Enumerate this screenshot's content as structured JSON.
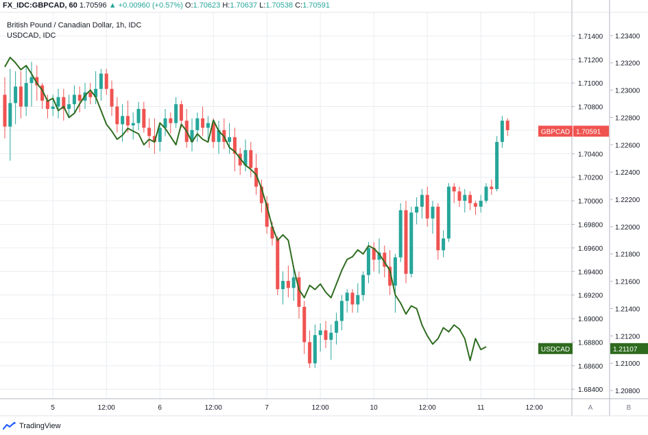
{
  "header": {
    "symbol": "FX_IDC:GBPCAD, 60",
    "last": "1.70596",
    "change": "+0.00960 (+0.57%)",
    "o_label": "O:",
    "o": "1.70623",
    "h_label": "H:",
    "h": "1.70637",
    "l_label": "L:",
    "l": "1.70538",
    "c_label": "C:",
    "c": "1.70591"
  },
  "subtitle_main": "British Pound / Canadian Dollar, 1h, IDC",
  "subtitle_overlay": "USDCAD, IDC",
  "footer": {
    "brand": "TradingView"
  },
  "colors": {
    "up": "#26a69a",
    "down": "#ef5350",
    "overlay": "#2e6b1f",
    "grid": "#e9ecf0",
    "axis_text": "#131722"
  },
  "chart_data": {
    "type": "candlestick",
    "x_tick_labels": [
      "5",
      "12:00",
      "6",
      "12:00",
      "7",
      "12:00",
      "10",
      "12:00",
      "11",
      "12:00"
    ],
    "x_tick_index": [
      9,
      19,
      29,
      39,
      49,
      59,
      69,
      79,
      89,
      99
    ],
    "y_left_ticks": [
      "1.71400",
      "1.71200",
      "1.71000",
      "1.70800",
      "1.70600",
      "1.70400",
      "1.70200",
      "1.70000",
      "1.69800",
      "1.69600",
      "1.69400",
      "1.69200",
      "1.69000",
      "1.68800",
      "1.68600",
      "1.68400"
    ],
    "y_right_ticks": [
      "1.23400",
      "1.23200",
      "1.23000",
      "1.22800",
      "1.22600",
      "1.22400",
      "1.22200",
      "1.22000",
      "1.21800",
      "1.21600",
      "1.21400",
      "1.21200",
      "1.21000",
      "1.20800"
    ],
    "y_left_range": [
      1.6832,
      1.716
    ],
    "y_right_range": [
      1.2074,
      1.2357
    ],
    "scale_buttons": [
      "A",
      "B"
    ],
    "price_tags": [
      {
        "label": "GBPCAD",
        "value": "1.70591",
        "series": "main"
      },
      {
        "label": "USDCAD",
        "value": "1.21107",
        "series": "overlay"
      }
    ],
    "series": [
      {
        "name": "GBPCAD",
        "kind": "candles",
        "ohlc": [
          [
            1.709,
            1.7105,
            1.7053,
            1.7063
          ],
          [
            1.7063,
            1.7112,
            1.7034,
            1.7083
          ],
          [
            1.7083,
            1.711,
            1.7065,
            1.7097
          ],
          [
            1.7097,
            1.711,
            1.707,
            1.708
          ],
          [
            1.708,
            1.7115,
            1.7072,
            1.71
          ],
          [
            1.71,
            1.7118,
            1.708,
            1.7105
          ],
          [
            1.7105,
            1.7115,
            1.7085,
            1.7098
          ],
          [
            1.7098,
            1.71,
            1.7078,
            1.7085
          ],
          [
            1.7085,
            1.709,
            1.707,
            1.7078
          ],
          [
            1.7078,
            1.709,
            1.7072,
            1.708
          ],
          [
            1.708,
            1.7095,
            1.707,
            1.7088
          ],
          [
            1.7088,
            1.7095,
            1.7068,
            1.7078
          ],
          [
            1.7078,
            1.709,
            1.707,
            1.7082
          ],
          [
            1.7082,
            1.7098,
            1.7074,
            1.709
          ],
          [
            1.709,
            1.7097,
            1.7075,
            1.7085
          ],
          [
            1.7085,
            1.71,
            1.7078,
            1.7092
          ],
          [
            1.7092,
            1.71,
            1.7082,
            1.7088
          ],
          [
            1.7088,
            1.711,
            1.7082,
            1.7095
          ],
          [
            1.7095,
            1.7112,
            1.7085,
            1.7108
          ],
          [
            1.7108,
            1.7112,
            1.709,
            1.7095
          ],
          [
            1.7095,
            1.7102,
            1.7072,
            1.708
          ],
          [
            1.708,
            1.7088,
            1.7058,
            1.7065
          ],
          [
            1.7065,
            1.7082,
            1.705,
            1.7072
          ],
          [
            1.7072,
            1.7085,
            1.7058,
            1.7064
          ],
          [
            1.7064,
            1.7075,
            1.7052,
            1.7066
          ],
          [
            1.7066,
            1.7084,
            1.706,
            1.7078
          ],
          [
            1.7078,
            1.7084,
            1.7058,
            1.7062
          ],
          [
            1.7062,
            1.707,
            1.7045,
            1.7055
          ],
          [
            1.7055,
            1.707,
            1.704,
            1.705
          ],
          [
            1.705,
            1.7065,
            1.7042,
            1.7062
          ],
          [
            1.7062,
            1.7078,
            1.7055,
            1.707
          ],
          [
            1.707,
            1.7075,
            1.7057,
            1.7066
          ],
          [
            1.7066,
            1.7088,
            1.7062,
            1.7082
          ],
          [
            1.7082,
            1.7085,
            1.7062,
            1.7068
          ],
          [
            1.7068,
            1.7078,
            1.7045,
            1.705
          ],
          [
            1.705,
            1.707,
            1.7042,
            1.706
          ],
          [
            1.706,
            1.7075,
            1.705,
            1.707
          ],
          [
            1.707,
            1.708,
            1.7055,
            1.7062
          ],
          [
            1.7062,
            1.7072,
            1.705,
            1.7066
          ],
          [
            1.7066,
            1.707,
            1.7045,
            1.705
          ],
          [
            1.705,
            1.7068,
            1.704,
            1.706
          ],
          [
            1.706,
            1.707,
            1.7044,
            1.705
          ],
          [
            1.705,
            1.7066,
            1.704,
            1.7054
          ],
          [
            1.7054,
            1.7062,
            1.7025,
            1.704
          ],
          [
            1.704,
            1.7045,
            1.7022,
            1.703
          ],
          [
            1.703,
            1.7052,
            1.7025,
            1.7043
          ],
          [
            1.7043,
            1.705,
            1.702,
            1.7028
          ],
          [
            1.7028,
            1.704,
            1.7005,
            1.7012
          ],
          [
            1.7012,
            1.7018,
            1.699,
            1.6998
          ],
          [
            1.6998,
            1.7004,
            1.6972,
            1.6978
          ],
          [
            1.6978,
            1.6982,
            1.6962,
            1.6968
          ],
          [
            1.6968,
            1.697,
            1.692,
            1.6925
          ],
          [
            1.6925,
            1.694,
            1.6912,
            1.6932
          ],
          [
            1.6932,
            1.6945,
            1.6918,
            1.6926
          ],
          [
            1.6926,
            1.6945,
            1.6915,
            1.6935
          ],
          [
            1.6935,
            1.694,
            1.69,
            1.691
          ],
          [
            1.691,
            1.6915,
            1.687,
            1.688
          ],
          [
            1.688,
            1.689,
            1.6858,
            1.6862
          ],
          [
            1.6862,
            1.6895,
            1.6858,
            1.6886
          ],
          [
            1.6886,
            1.6896,
            1.6872,
            1.689
          ],
          [
            1.689,
            1.6898,
            1.6875,
            1.6882
          ],
          [
            1.6882,
            1.6895,
            1.6865,
            1.6888
          ],
          [
            1.6888,
            1.6905,
            1.6878,
            1.6898
          ],
          [
            1.6898,
            1.692,
            1.689,
            1.6915
          ],
          [
            1.6915,
            1.6925,
            1.6905,
            1.6922
          ],
          [
            1.6922,
            1.6925,
            1.6905,
            1.6912
          ],
          [
            1.6912,
            1.693,
            1.6905,
            1.692
          ],
          [
            1.692,
            1.694,
            1.6915,
            1.6937
          ],
          [
            1.6937,
            1.6965,
            1.693,
            1.696
          ],
          [
            1.696,
            1.6965,
            1.694,
            1.695
          ],
          [
            1.695,
            1.6968,
            1.6938,
            1.6956
          ],
          [
            1.6956,
            1.6962,
            1.6935,
            1.6944
          ],
          [
            1.6944,
            1.6958,
            1.692,
            1.6928
          ],
          [
            1.6928,
            1.6955,
            1.6905,
            1.6952
          ],
          [
            1.6952,
            1.6998,
            1.6948,
            1.6992
          ],
          [
            1.6992,
            1.7,
            1.693,
            1.6938
          ],
          [
            1.6938,
            1.6995,
            1.6935,
            1.699
          ],
          [
            1.699,
            1.7003,
            1.698,
            1.6995
          ],
          [
            1.6995,
            1.701,
            1.6985,
            1.7005
          ],
          [
            1.7005,
            1.7012,
            1.6978,
            1.6985
          ],
          [
            1.6985,
            1.7,
            1.6972,
            1.6995
          ],
          [
            1.6995,
            1.6998,
            1.695,
            1.6958
          ],
          [
            1.6958,
            1.6975,
            1.6952,
            1.6968
          ],
          [
            1.6968,
            1.7015,
            1.6965,
            1.7012
          ],
          [
            1.7012,
            1.7015,
            1.6998,
            1.7008
          ],
          [
            1.7008,
            1.7012,
            1.6995,
            1.7
          ],
          [
            1.7,
            1.701,
            1.699,
            1.7005
          ],
          [
            1.7005,
            1.7008,
            1.6992,
            1.6998
          ],
          [
            1.6998,
            1.7,
            1.6988,
            1.6995
          ],
          [
            1.6995,
            1.7005,
            1.699,
            1.7
          ],
          [
            1.7,
            1.7015,
            1.6998,
            1.7012
          ],
          [
            1.7012,
            1.7018,
            1.7005,
            1.701
          ],
          [
            1.701,
            1.7055,
            1.7008,
            1.705
          ],
          [
            1.705,
            1.7072,
            1.7045,
            1.7068
          ],
          [
            1.7068,
            1.707,
            1.7055,
            1.706
          ]
        ]
      },
      {
        "name": "USDCAD",
        "kind": "line",
        "values": [
          1.2317,
          1.2324,
          1.232,
          1.2315,
          1.2318,
          1.2312,
          1.2305,
          1.23,
          1.2292,
          1.2294,
          1.2285,
          1.2288,
          1.228,
          1.2283,
          1.229,
          1.2296,
          1.23,
          1.2295,
          1.2285,
          1.2275,
          1.227,
          1.2264,
          1.2267,
          1.2272,
          1.227,
          1.2268,
          1.226,
          1.2264,
          1.2262,
          1.2276,
          1.2272,
          1.2266,
          1.226,
          1.2275,
          1.227,
          1.2262,
          1.2268,
          1.2264,
          1.2262,
          1.2278,
          1.227,
          1.2266,
          1.2258,
          1.2255,
          1.225,
          1.2245,
          1.2242,
          1.2238,
          1.2228,
          1.2215,
          1.22,
          1.219,
          1.2194,
          1.219,
          1.217,
          1.2154,
          1.2148,
          1.2157,
          1.2154,
          1.2158,
          1.2152,
          1.2148,
          1.2158,
          1.2168,
          1.2176,
          1.2178,
          1.2183,
          1.218,
          1.2186,
          1.2184,
          1.218,
          1.2174,
          1.2168,
          1.215,
          1.2144,
          1.2136,
          1.2142,
          1.214,
          1.2128,
          1.212,
          1.2114,
          1.2118,
          1.2126,
          1.2123,
          1.2128,
          1.2125,
          1.2118,
          1.2102,
          1.2118,
          1.211,
          1.2112
        ]
      }
    ]
  }
}
